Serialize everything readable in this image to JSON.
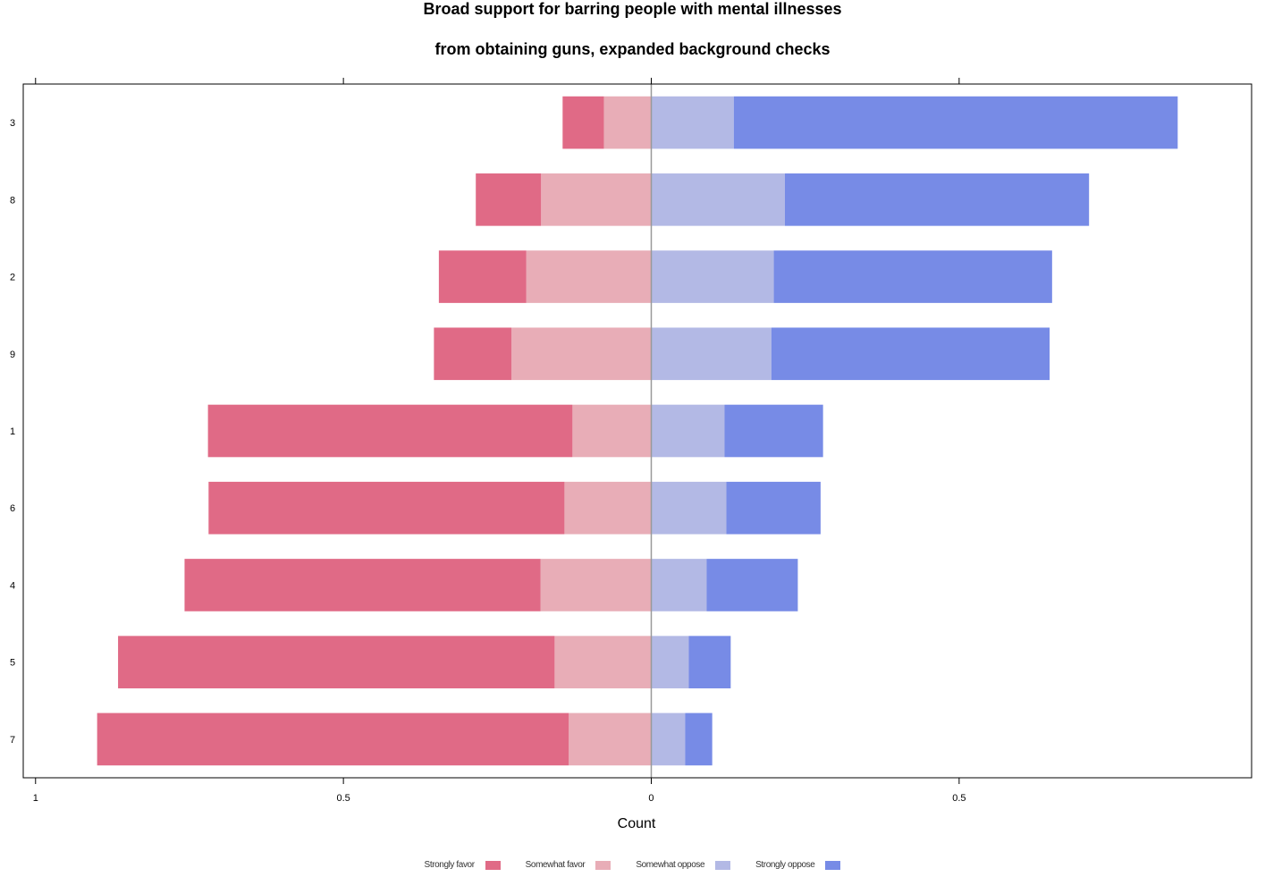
{
  "chart_data": {
    "type": "bar",
    "orientation": "horizontal",
    "stacked": "diverging",
    "title": "Broad support for barring people with mental illnesses",
    "subtitle": "from obtaining guns, expanded background checks",
    "xlabel": "Count",
    "ylabel": "",
    "xlim": [
      -1.02,
      0.975
    ],
    "x_ticks": [
      -1,
      -0.5,
      0,
      0.5
    ],
    "x_tick_labels": [
      "1",
      "0.5",
      "0",
      "0.5"
    ],
    "grid": false,
    "legend_position": "bottom",
    "categories": [
      "3",
      "8",
      "2",
      "9",
      "1",
      "6",
      "4",
      "5",
      "7"
    ],
    "series": [
      {
        "name": "Strongly favor",
        "side": "left",
        "color": "#E06A86",
        "values": [
          0.067,
          0.106,
          0.142,
          0.126,
          0.592,
          0.578,
          0.578,
          0.709,
          0.766
        ]
      },
      {
        "name": "Somewhat favor",
        "side": "left",
        "color": "#E8ADB7",
        "values": [
          0.077,
          0.179,
          0.203,
          0.227,
          0.128,
          0.141,
          0.18,
          0.157,
          0.134
        ]
      },
      {
        "name": "Somewhat oppose",
        "side": "right",
        "color": "#B3B9E5",
        "values": [
          0.134,
          0.217,
          0.199,
          0.195,
          0.119,
          0.122,
          0.09,
          0.061,
          0.055
        ]
      },
      {
        "name": "Strongly oppose",
        "side": "right",
        "color": "#778BE6",
        "values": [
          0.721,
          0.494,
          0.452,
          0.452,
          0.16,
          0.153,
          0.148,
          0.068,
          0.044
        ]
      }
    ]
  }
}
